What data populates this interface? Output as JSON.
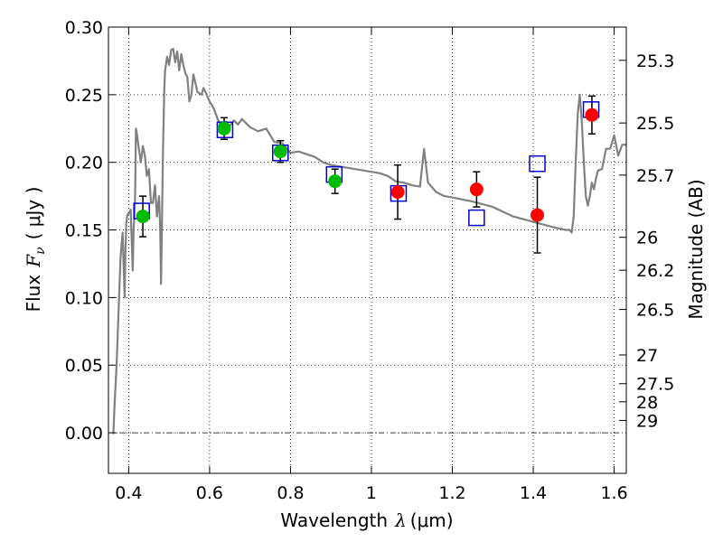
{
  "chart_data": {
    "type": "scatter",
    "xlabel_prefix": "Wavelength",
    "xlabel_symbol": "λ",
    "xlabel_unit": "(μm)",
    "ylabel_prefix": "Flux",
    "ylabel_symbol": "F",
    "ylabel_subscript": "ν",
    "ylabel_unit": "( μJy )",
    "y2label": "Magnitude (AB)",
    "xlim": [
      0.35,
      1.63
    ],
    "ylim": [
      -0.03,
      0.3
    ],
    "grid": true,
    "x_ticks": [
      0.4,
      0.6,
      0.8,
      1.0,
      1.2,
      1.4,
      1.6
    ],
    "x_tick_labels": [
      "0.4",
      "0.6",
      "0.8",
      "1",
      "1.2",
      "1.4",
      "1.6"
    ],
    "y_ticks": [
      0.0,
      0.05,
      0.1,
      0.15,
      0.2,
      0.25,
      0.3
    ],
    "y_tick_labels": [
      "0.00",
      "0.05",
      "0.10",
      "0.15",
      "0.20",
      "0.25",
      "0.30"
    ],
    "y2_ticks": [
      "25.3",
      "25.5",
      "25.7",
      "26",
      "26.2",
      "26.5",
      "27",
      "27.5",
      "28",
      "29"
    ],
    "colors": {
      "model": "#808080",
      "green": "#00bb00",
      "red": "#ff0000",
      "square": "#0000cc",
      "errorbar": "#000000",
      "zero_line": "#000000"
    },
    "model_spectrum": {
      "x": [
        0.362,
        0.365,
        0.37,
        0.375,
        0.38,
        0.385,
        0.39,
        0.392,
        0.394,
        0.396,
        0.398,
        0.4,
        0.405,
        0.41,
        0.412,
        0.414,
        0.416,
        0.418,
        0.42,
        0.425,
        0.43,
        0.435,
        0.44,
        0.445,
        0.45,
        0.455,
        0.46,
        0.465,
        0.47,
        0.475,
        0.478,
        0.48,
        0.485,
        0.488,
        0.49,
        0.495,
        0.5,
        0.505,
        0.51,
        0.515,
        0.52,
        0.525,
        0.53,
        0.535,
        0.54,
        0.545,
        0.55,
        0.555,
        0.56,
        0.57,
        0.58,
        0.585,
        0.59,
        0.6,
        0.61,
        0.62,
        0.63,
        0.64,
        0.65,
        0.66,
        0.67,
        0.68,
        0.7,
        0.72,
        0.74,
        0.76,
        0.78,
        0.8,
        0.82,
        0.84,
        0.86,
        0.88,
        0.9,
        0.92,
        0.94,
        0.96,
        0.98,
        1.0,
        1.02,
        1.04,
        1.06,
        1.08,
        1.1,
        1.12,
        1.13,
        1.14,
        1.16,
        1.18,
        1.2,
        1.25,
        1.3,
        1.35,
        1.4,
        1.45,
        1.48,
        1.49,
        1.495,
        1.5,
        1.505,
        1.51,
        1.515,
        1.52,
        1.525,
        1.53,
        1.535,
        1.54,
        1.545,
        1.55,
        1.555,
        1.56,
        1.57,
        1.58,
        1.59,
        1.6,
        1.61,
        1.62,
        1.63
      ],
      "y": [
        -0.001,
        0.02,
        0.05,
        0.09,
        0.13,
        0.148,
        0.1,
        0.135,
        0.155,
        0.16,
        0.162,
        0.162,
        0.165,
        0.12,
        0.15,
        0.16,
        0.175,
        0.225,
        0.222,
        0.21,
        0.2,
        0.212,
        0.205,
        0.19,
        0.195,
        0.17,
        0.17,
        0.183,
        0.16,
        0.175,
        0.15,
        0.11,
        0.21,
        0.255,
        0.268,
        0.278,
        0.272,
        0.283,
        0.284,
        0.274,
        0.282,
        0.268,
        0.28,
        0.272,
        0.266,
        0.263,
        0.245,
        0.25,
        0.265,
        0.252,
        0.25,
        0.255,
        0.252,
        0.245,
        0.24,
        0.232,
        0.226,
        0.23,
        0.227,
        0.231,
        0.228,
        0.232,
        0.226,
        0.223,
        0.225,
        0.215,
        0.214,
        0.207,
        0.208,
        0.206,
        0.204,
        0.2,
        0.198,
        0.197,
        0.196,
        0.195,
        0.194,
        0.193,
        0.192,
        0.19,
        0.186,
        0.185,
        0.183,
        0.182,
        0.21,
        0.185,
        0.178,
        0.175,
        0.174,
        0.171,
        0.167,
        0.16,
        0.156,
        0.152,
        0.15,
        0.15,
        0.148,
        0.16,
        0.2,
        0.236,
        0.25,
        0.23,
        0.2,
        0.175,
        0.168,
        0.175,
        0.185,
        0.18,
        0.188,
        0.194,
        0.195,
        0.21,
        0.21,
        0.22,
        0.205,
        0.213,
        0.213
      ]
    },
    "green_points": {
      "x": [
        0.435,
        0.636,
        0.775,
        0.91
      ],
      "y": [
        0.16,
        0.225,
        0.208,
        0.186
      ],
      "yerr": [
        0.015,
        0.008,
        0.008,
        0.009
      ]
    },
    "red_points": {
      "x": [
        1.065,
        1.26,
        1.41,
        1.545
      ],
      "y": [
        0.178,
        0.18,
        0.161,
        0.235
      ],
      "yerr": [
        0.02,
        0.013,
        0.028,
        0.014
      ]
    },
    "square_points": {
      "x": [
        0.432,
        0.638,
        0.775,
        0.908,
        1.067,
        1.26,
        1.41,
        1.543
      ],
      "y": [
        0.164,
        0.224,
        0.207,
        0.191,
        0.177,
        0.159,
        0.199,
        0.239
      ]
    }
  }
}
